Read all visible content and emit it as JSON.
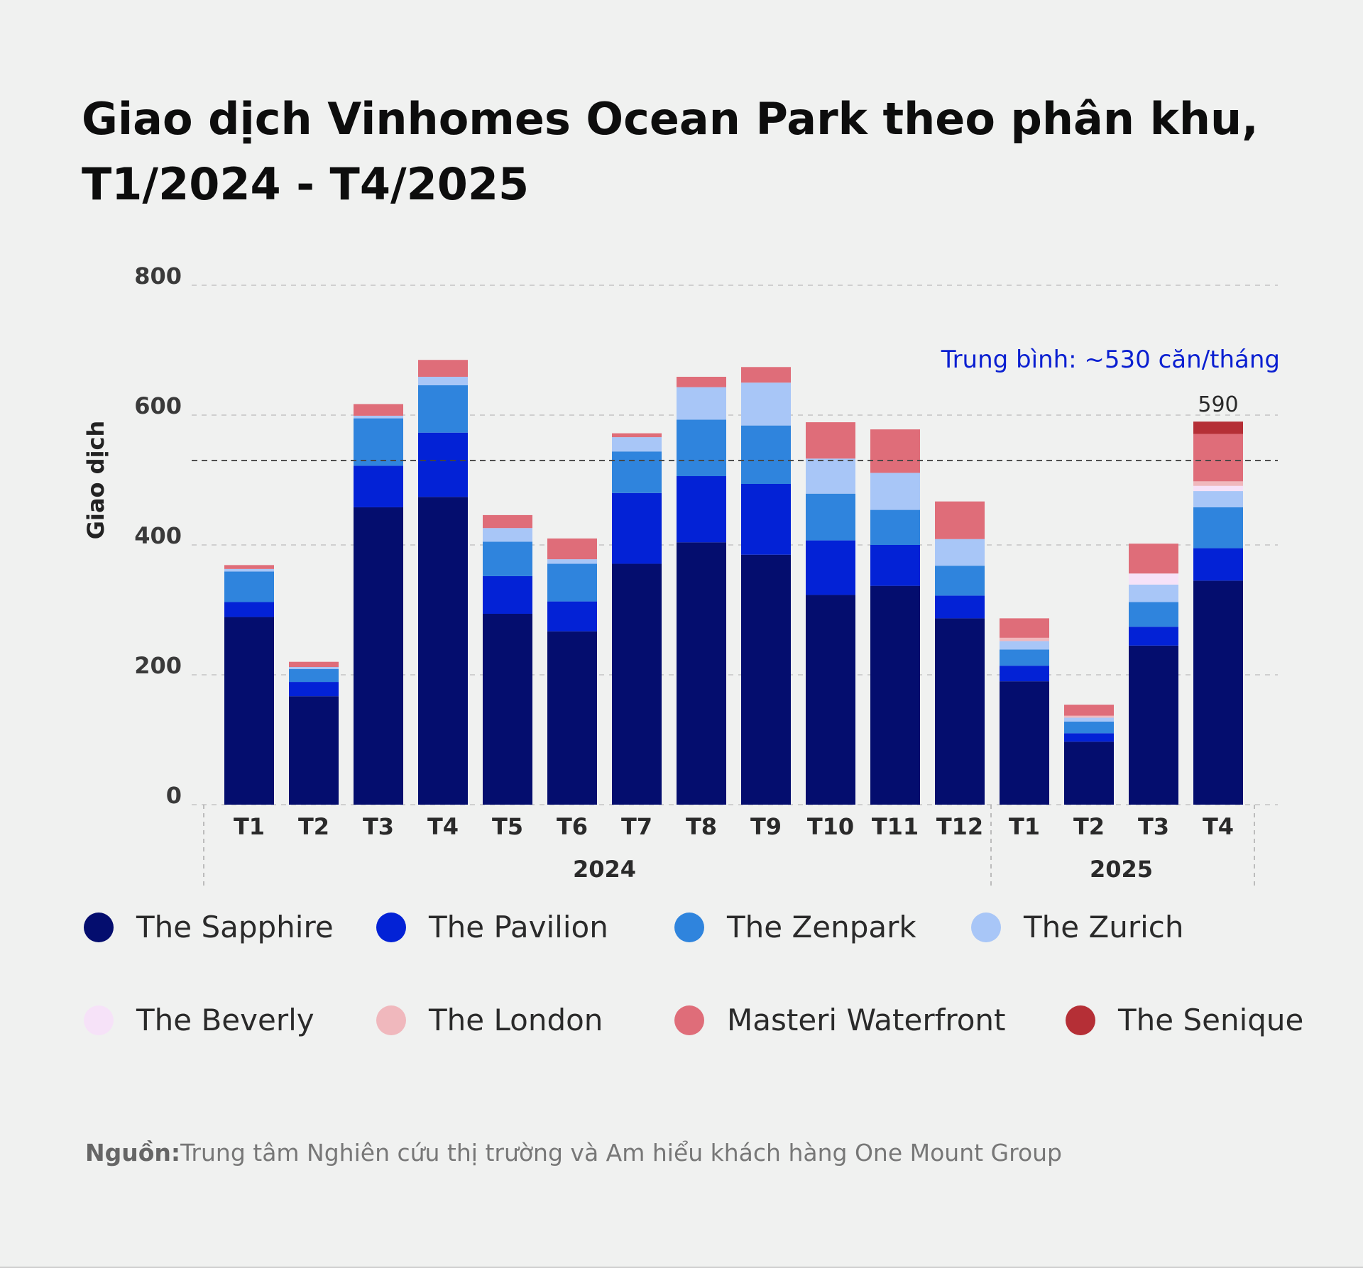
{
  "title": {
    "line1": "Giao dịch Vinhomes Ocean Park theo phân khu,",
    "line2": "T1/2024 - T4/2025"
  },
  "source": {
    "label": "Nguồn:",
    "text": "Trung tâm Nghiên cứu thị trường và Am hiểu khách hàng One Mount Group"
  },
  "chart_data": {
    "type": "bar",
    "stacked": true,
    "ylabel": "Giao dịch",
    "ylim": [
      0,
      800
    ],
    "yticks": [
      0,
      200,
      400,
      600,
      800
    ],
    "grid": true,
    "legend_position": "bottom",
    "categories": [
      "T1",
      "T2",
      "T3",
      "T4",
      "T5",
      "T6",
      "T7",
      "T8",
      "T9",
      "T10",
      "T11",
      "T12",
      "T1",
      "T2",
      "T3",
      "T4"
    ],
    "groups": [
      {
        "label": "2024",
        "from": 0,
        "to": 11
      },
      {
        "label": "2025",
        "from": 12,
        "to": 15
      }
    ],
    "average": {
      "value": 530,
      "label": "Trung bình: ~530 căn/tháng",
      "color": "#0a1fd1"
    },
    "annotations": [
      {
        "index": 15,
        "text": "590"
      }
    ],
    "series": [
      {
        "name": "The Sapphire",
        "color": "#040d6e",
        "values": [
          289,
          167,
          458,
          474,
          294,
          267,
          371,
          404,
          385,
          323,
          337,
          287,
          190,
          97,
          245,
          345
        ]
      },
      {
        "name": "The Pavilion",
        "color": "#0322d6",
        "values": [
          23,
          22,
          64,
          99,
          58,
          46,
          109,
          102,
          109,
          84,
          63,
          35,
          24,
          13,
          29,
          50
        ]
      },
      {
        "name": "The Zenpark",
        "color": "#2f84dd",
        "values": [
          47,
          20,
          73,
          73,
          53,
          58,
          64,
          87,
          90,
          72,
          54,
          46,
          25,
          18,
          38,
          63
        ]
      },
      {
        "name": "The Zurich",
        "color": "#a8c6f7",
        "values": [
          4,
          3,
          4,
          13,
          21,
          7,
          22,
          50,
          66,
          54,
          57,
          41,
          13,
          6,
          27,
          25
        ]
      },
      {
        "name": "The Beverly",
        "color": "#f6e2f8",
        "values": [
          0,
          0,
          0,
          0,
          0,
          0,
          0,
          0,
          0,
          0,
          0,
          0,
          0,
          0,
          17,
          8
        ]
      },
      {
        "name": "The London",
        "color": "#f0b8bd",
        "values": [
          0,
          0,
          0,
          0,
          0,
          0,
          0,
          0,
          0,
          0,
          0,
          0,
          5,
          3,
          0,
          7
        ]
      },
      {
        "name": "Masteri Waterfront",
        "color": "#df6d79",
        "values": [
          6,
          8,
          18,
          26,
          20,
          32,
          6,
          16,
          24,
          56,
          67,
          58,
          30,
          17,
          46,
          73
        ]
      },
      {
        "name": "The Senique",
        "color": "#b52f36",
        "values": [
          0,
          0,
          0,
          0,
          0,
          0,
          0,
          0,
          0,
          0,
          0,
          0,
          0,
          0,
          0,
          19
        ]
      }
    ]
  }
}
